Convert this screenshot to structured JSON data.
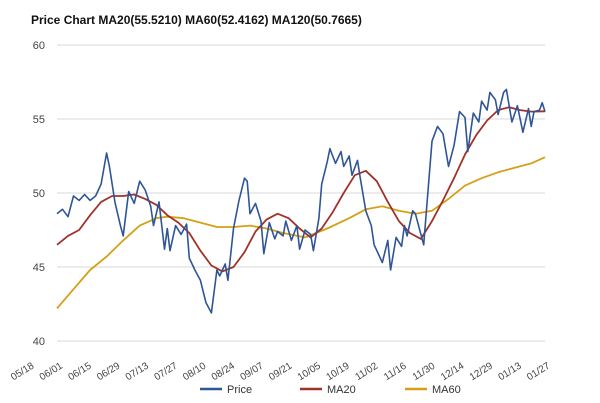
{
  "chart_data": {
    "type": "line",
    "title": "Price Chart MA20(55.5210) MA60(52.4162) MA120(50.7665)",
    "xlabel": "",
    "ylabel": "",
    "ylim": [
      40,
      60
    ],
    "yticks": [
      40,
      45,
      50,
      55,
      60
    ],
    "x_tick_labels": [
      "05/18",
      "06/01",
      "06/15",
      "06/29",
      "07/13",
      "07/27",
      "08/10",
      "08/24",
      "09/07",
      "09/21",
      "10/05",
      "10/19",
      "11/02",
      "11/16",
      "11/30",
      "12/14",
      "12/29",
      "01/13",
      "01/27"
    ],
    "grid": "horizontal",
    "legend_position": "bottom",
    "colors": {
      "Price": "#2f5597",
      "MA20": "#a0322a",
      "MA60": "#d4a017"
    },
    "series": [
      {
        "name": "Price",
        "values": [
          [
            0,
            48.6
          ],
          [
            2,
            48.9
          ],
          [
            4,
            48.4
          ],
          [
            6,
            49.8
          ],
          [
            8,
            49.5
          ],
          [
            10,
            49.9
          ],
          [
            12,
            49.5
          ],
          [
            14,
            49.8
          ],
          [
            16,
            50.6
          ],
          [
            18,
            52.7
          ],
          [
            19,
            51.8
          ],
          [
            21,
            49.4
          ],
          [
            23,
            47.8
          ],
          [
            24,
            47.1
          ],
          [
            26,
            50.1
          ],
          [
            28,
            49.3
          ],
          [
            30,
            50.8
          ],
          [
            32,
            50.2
          ],
          [
            34,
            49.1
          ],
          [
            35,
            47.8
          ],
          [
            37,
            49.4
          ],
          [
            39,
            46.2
          ],
          [
            40,
            47.6
          ],
          [
            41,
            46.1
          ],
          [
            43,
            47.8
          ],
          [
            45,
            47.2
          ],
          [
            47,
            47.9
          ],
          [
            48,
            45.6
          ],
          [
            50,
            44.8
          ],
          [
            52,
            44.1
          ],
          [
            54,
            42.6
          ],
          [
            56,
            41.9
          ],
          [
            58,
            44.8
          ],
          [
            59,
            44.4
          ],
          [
            61,
            45.2
          ],
          [
            62,
            44.1
          ],
          [
            64,
            47.6
          ],
          [
            66,
            49.5
          ],
          [
            68,
            51.0
          ],
          [
            69,
            50.8
          ],
          [
            70,
            48.6
          ],
          [
            72,
            49.3
          ],
          [
            74,
            48.1
          ],
          [
            75,
            45.9
          ],
          [
            77,
            48.0
          ],
          [
            79,
            46.9
          ],
          [
            80,
            47.4
          ],
          [
            82,
            47.1
          ],
          [
            83,
            48.1
          ],
          [
            85,
            46.8
          ],
          [
            87,
            47.8
          ],
          [
            88,
            46.2
          ],
          [
            90,
            47.5
          ],
          [
            92,
            47.2
          ],
          [
            93,
            46.1
          ],
          [
            95,
            48.3
          ],
          [
            96,
            50.6
          ],
          [
            98,
            52.1
          ],
          [
            99,
            53.0
          ],
          [
            101,
            52.0
          ],
          [
            103,
            52.8
          ],
          [
            104,
            51.8
          ],
          [
            106,
            52.5
          ],
          [
            107,
            51.2
          ],
          [
            109,
            52.2
          ],
          [
            110,
            51.0
          ],
          [
            112,
            48.8
          ],
          [
            114,
            47.8
          ],
          [
            115,
            46.5
          ],
          [
            117,
            45.7
          ],
          [
            118,
            45.3
          ],
          [
            120,
            46.8
          ],
          [
            121,
            44.8
          ],
          [
            123,
            47.0
          ],
          [
            125,
            46.4
          ],
          [
            126,
            47.8
          ],
          [
            127,
            47.1
          ],
          [
            129,
            48.8
          ],
          [
            130,
            48.6
          ],
          [
            132,
            47.2
          ],
          [
            133,
            46.5
          ],
          [
            134,
            48.8
          ],
          [
            136,
            53.5
          ],
          [
            138,
            54.5
          ],
          [
            140,
            54.0
          ],
          [
            142,
            51.8
          ],
          [
            144,
            53.2
          ],
          [
            146,
            55.5
          ],
          [
            148,
            55.1
          ],
          [
            149,
            52.8
          ],
          [
            151,
            55.4
          ],
          [
            153,
            54.8
          ],
          [
            154,
            56.2
          ],
          [
            156,
            55.6
          ],
          [
            157,
            56.8
          ],
          [
            159,
            56.3
          ],
          [
            160,
            55.3
          ],
          [
            162,
            56.8
          ],
          [
            163,
            57.0
          ],
          [
            165,
            54.8
          ],
          [
            167,
            55.9
          ],
          [
            169,
            54.1
          ],
          [
            171,
            55.7
          ],
          [
            172,
            54.5
          ],
          [
            173,
            55.5
          ],
          [
            175,
            55.6
          ],
          [
            176,
            56.1
          ],
          [
            177,
            55.5
          ]
        ]
      },
      {
        "name": "MA20",
        "values": [
          [
            0,
            46.5
          ],
          [
            4,
            47.1
          ],
          [
            8,
            47.5
          ],
          [
            12,
            48.5
          ],
          [
            16,
            49.4
          ],
          [
            20,
            49.8
          ],
          [
            24,
            49.8
          ],
          [
            28,
            49.9
          ],
          [
            32,
            49.6
          ],
          [
            36,
            49.2
          ],
          [
            40,
            48.5
          ],
          [
            44,
            48.0
          ],
          [
            48,
            47.3
          ],
          [
            52,
            46.1
          ],
          [
            56,
            45.1
          ],
          [
            60,
            44.7
          ],
          [
            64,
            45.0
          ],
          [
            68,
            46.0
          ],
          [
            72,
            47.4
          ],
          [
            76,
            48.2
          ],
          [
            80,
            48.6
          ],
          [
            84,
            48.3
          ],
          [
            88,
            47.6
          ],
          [
            92,
            47.0
          ],
          [
            96,
            47.6
          ],
          [
            100,
            48.7
          ],
          [
            104,
            50.0
          ],
          [
            108,
            51.2
          ],
          [
            112,
            51.5
          ],
          [
            116,
            50.8
          ],
          [
            120,
            49.4
          ],
          [
            124,
            48.1
          ],
          [
            128,
            47.3
          ],
          [
            132,
            46.9
          ],
          [
            136,
            48.1
          ],
          [
            140,
            49.5
          ],
          [
            144,
            51.0
          ],
          [
            148,
            52.6
          ],
          [
            152,
            53.9
          ],
          [
            156,
            54.9
          ],
          [
            160,
            55.6
          ],
          [
            164,
            55.8
          ],
          [
            168,
            55.6
          ],
          [
            172,
            55.5
          ],
          [
            177,
            55.52
          ]
        ]
      },
      {
        "name": "MA60",
        "values": [
          [
            0,
            42.2
          ],
          [
            6,
            43.5
          ],
          [
            12,
            44.8
          ],
          [
            18,
            45.7
          ],
          [
            24,
            46.8
          ],
          [
            30,
            47.8
          ],
          [
            36,
            48.3
          ],
          [
            40,
            48.4
          ],
          [
            46,
            48.3
          ],
          [
            52,
            48.0
          ],
          [
            58,
            47.7
          ],
          [
            64,
            47.7
          ],
          [
            70,
            47.8
          ],
          [
            76,
            47.6
          ],
          [
            82,
            47.3
          ],
          [
            90,
            47.0
          ],
          [
            98,
            47.6
          ],
          [
            106,
            48.3
          ],
          [
            112,
            48.9
          ],
          [
            118,
            49.1
          ],
          [
            124,
            48.8
          ],
          [
            130,
            48.6
          ],
          [
            136,
            48.8
          ],
          [
            142,
            49.6
          ],
          [
            148,
            50.5
          ],
          [
            154,
            51.0
          ],
          [
            160,
            51.4
          ],
          [
            166,
            51.7
          ],
          [
            172,
            52.0
          ],
          [
            177,
            52.42
          ]
        ]
      }
    ]
  }
}
